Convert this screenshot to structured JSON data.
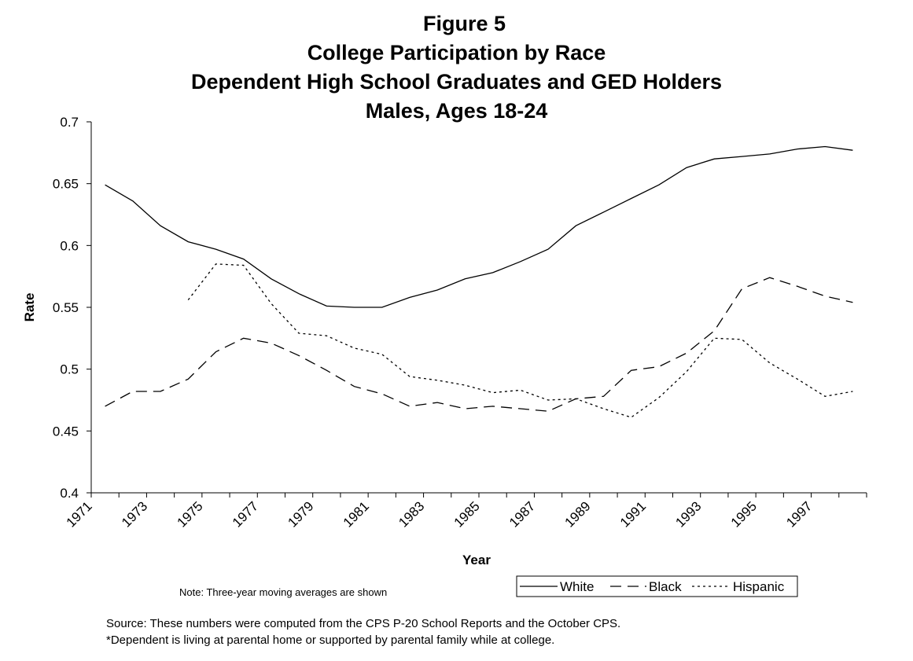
{
  "title": {
    "figure": "Figure 5",
    "line1": "College Participation by Race",
    "line2": "Dependent High School Graduates and GED Holders",
    "line3": "Males, Ages 18-24"
  },
  "note": "Note:  Three-year moving averages are shown",
  "source": {
    "line1": "Source:  These numbers were computed from the CPS P-20 School Reports and the October CPS.",
    "line2": "*Dependent is living at parental home or supported by parental family while at college."
  },
  "chart_data": {
    "type": "line",
    "xlabel": "Year",
    "ylabel": "Rate",
    "ylim": [
      0.4,
      0.7
    ],
    "y_ticks": [
      "0.4",
      "0.45",
      "0.5",
      "0.55",
      "0.6",
      "0.65",
      "0.7"
    ],
    "x_tick_labels": [
      "1971",
      "1973",
      "1975",
      "1977",
      "1979",
      "1981",
      "1983",
      "1985",
      "1987",
      "1989",
      "1991",
      "1993",
      "1995",
      "1997"
    ],
    "x": [
      1971,
      1972,
      1973,
      1974,
      1975,
      1976,
      1977,
      1978,
      1979,
      1980,
      1981,
      1982,
      1983,
      1984,
      1985,
      1986,
      1987,
      1988,
      1989,
      1990,
      1991,
      1992,
      1993,
      1994,
      1995,
      1996,
      1997,
      1998
    ],
    "grid": false,
    "legend_position": "bottom-right",
    "series": [
      {
        "name": "White",
        "style": "solid",
        "values": [
          0.649,
          0.636,
          0.616,
          0.603,
          0.597,
          0.589,
          0.573,
          0.561,
          0.551,
          0.55,
          0.55,
          0.558,
          0.564,
          0.573,
          0.578,
          0.587,
          0.597,
          0.616,
          0.627,
          0.638,
          0.649,
          0.663,
          0.67,
          0.672,
          0.674,
          0.678,
          0.68,
          0.677
        ]
      },
      {
        "name": "Black",
        "style": "dashed",
        "values": [
          0.47,
          0.482,
          0.482,
          0.492,
          0.514,
          0.525,
          0.521,
          0.511,
          0.499,
          0.486,
          0.48,
          0.47,
          0.473,
          0.468,
          0.47,
          0.468,
          0.466,
          0.476,
          0.478,
          0.499,
          0.502,
          0.513,
          0.531,
          0.565,
          0.574,
          0.567,
          0.559,
          0.554
        ]
      },
      {
        "name": "Hispanic",
        "style": "dotted",
        "values": [
          null,
          null,
          null,
          0.556,
          0.585,
          0.584,
          0.553,
          0.529,
          0.527,
          0.517,
          0.512,
          0.494,
          0.491,
          0.487,
          0.481,
          0.483,
          0.475,
          0.476,
          0.468,
          0.461,
          0.477,
          0.498,
          0.525,
          0.524,
          0.505,
          0.492,
          0.478,
          0.482
        ]
      }
    ]
  }
}
